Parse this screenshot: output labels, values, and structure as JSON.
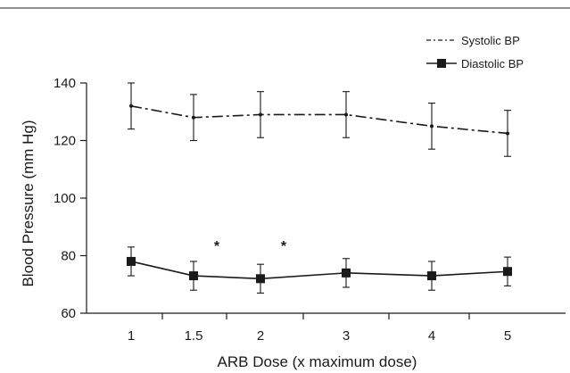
{
  "chart_data": {
    "type": "line",
    "categories": [
      "1",
      "1.5",
      "2",
      "3",
      "4",
      "5"
    ],
    "series": [
      {
        "name": "Systolic BP",
        "values": [
          132,
          128,
          129,
          129,
          125,
          122.5
        ],
        "error": [
          8,
          8,
          8,
          8,
          8,
          8
        ],
        "style": "dash-dot",
        "marker": "circle"
      },
      {
        "name": "Diastolic BP",
        "values": [
          78,
          73,
          72,
          74,
          73,
          74.5
        ],
        "error": [
          5,
          5,
          5,
          5,
          5,
          5
        ],
        "style": "solid",
        "marker": "square"
      }
    ],
    "annotations": [
      {
        "category": "1.5",
        "y": 83,
        "text": "*"
      },
      {
        "category": "2",
        "y": 83,
        "text": "*"
      }
    ],
    "title": "",
    "xlabel": "ARB Dose (x maximum dose)",
    "ylabel": "Blood Pressure (mm Hg)",
    "ylim": [
      60,
      140
    ],
    "yticks": [
      60,
      80,
      100,
      120,
      140
    ],
    "grid": false,
    "legend_position": "top-right",
    "colors": {
      "line": "#1a1a1a",
      "background": "#ffffff"
    }
  }
}
